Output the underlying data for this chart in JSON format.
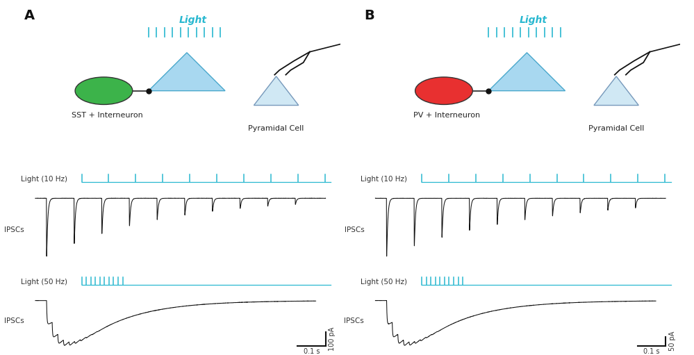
{
  "panel_A_label": "A",
  "panel_B_label": "B",
  "interneuron_A_color": "#3cb34a",
  "interneuron_B_color": "#e83030",
  "interneuron_A_type": "SST + Interneuron",
  "interneuron_B_type": "PV + Interneuron",
  "pyramidal_label": "Pyramidal Cell",
  "light_label": "Light",
  "light_color": "#29b8d0",
  "light_tick_color": "#29b8d0",
  "label_10hz": "Light (10 Hz)",
  "label_50hz": "Light (50 Hz)",
  "ipsc_label": "IPSCs",
  "scale_bar_A_50hz": "100 pA",
  "scale_bar_B_50hz": "50 pA",
  "scale_time": "0.1 s",
  "background_color": "#ffffff"
}
